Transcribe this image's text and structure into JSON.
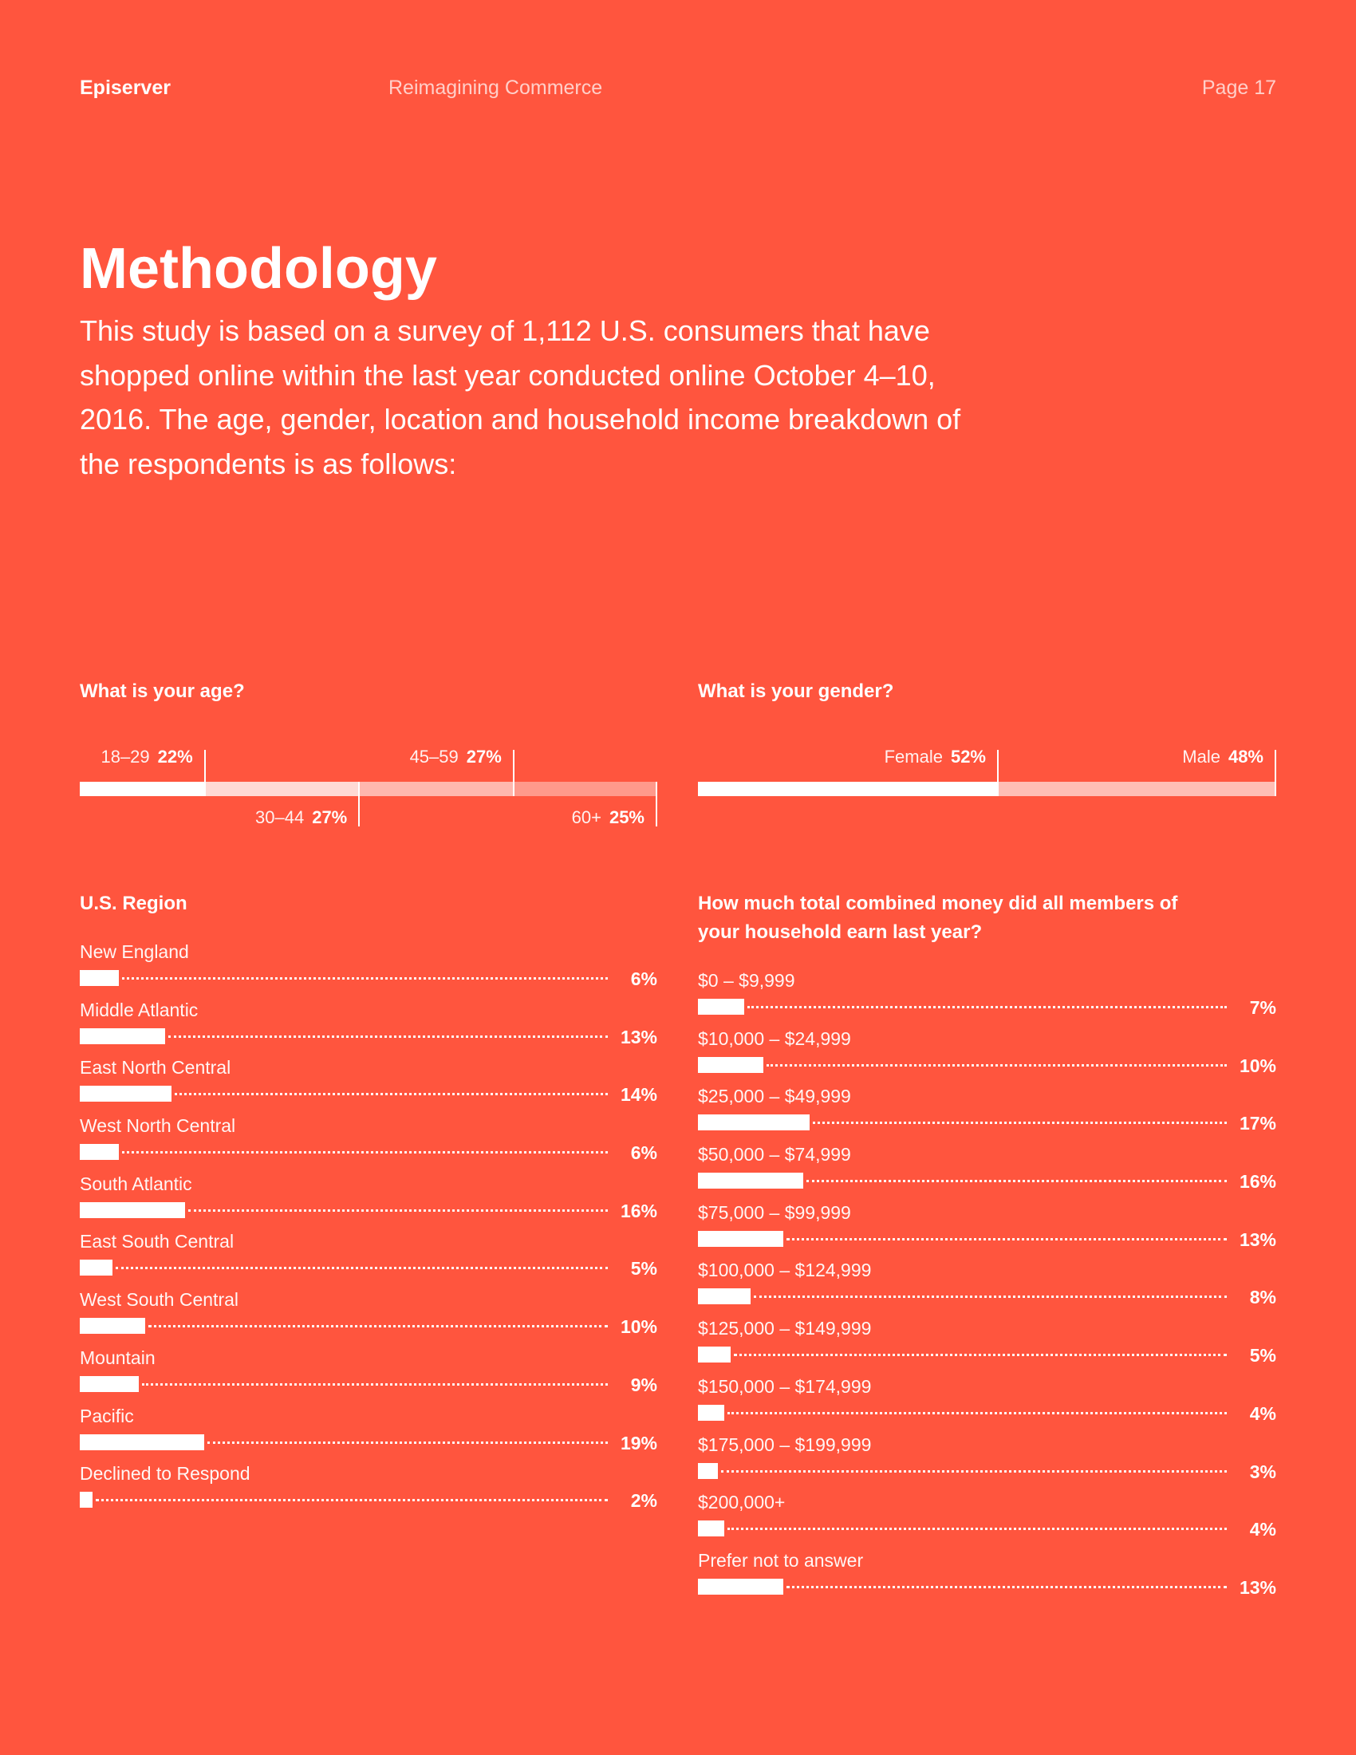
{
  "header": {
    "brand": "Episerver",
    "doc_title": "Reimagining Commerce",
    "page": "Page 17"
  },
  "title": "Methodology",
  "intro": "This study is based on a survey of 1,112 U.S. consumers that have shopped online within the last year conducted online October 4–10, 2016. The age, gender, location and household income breakdown of the respondents is as follows:",
  "colors": {
    "background": "#ff553e",
    "bar": "#ffffff"
  },
  "chart_data": [
    {
      "type": "bar",
      "title": "What is your age?",
      "stacked": true,
      "categories": [
        "18–29",
        "30–44",
        "45–59",
        "60+"
      ],
      "values": [
        22,
        27,
        27,
        25
      ],
      "labels": [
        "22%",
        "27%",
        "27%",
        "25%"
      ]
    },
    {
      "type": "bar",
      "title": "What is your gender?",
      "stacked": true,
      "categories": [
        "Female",
        "Male"
      ],
      "values": [
        52,
        48
      ],
      "labels": [
        "52%",
        "48%"
      ]
    },
    {
      "type": "bar",
      "title": "U.S. Region",
      "categories": [
        "New England",
        "Middle Atlantic",
        "East North Central",
        "West North Central",
        "South Atlantic",
        "East South Central",
        "West South Central",
        "Mountain",
        "Pacific",
        "Declined to Respond"
      ],
      "values": [
        6,
        13,
        14,
        6,
        16,
        5,
        10,
        9,
        19,
        2
      ],
      "labels": [
        "6%",
        "13%",
        "14%",
        "6%",
        "16%",
        "5%",
        "10%",
        "9%",
        "19%",
        "2%"
      ]
    },
    {
      "type": "bar",
      "title": "How much total combined money did all members of your household earn last year?",
      "categories": [
        "$0 – $9,999",
        "$10,000 – $24,999",
        "$25,000 – $49,999",
        "$50,000 – $74,999",
        "$75,000 – $99,999",
        "$100,000 – $124,999",
        "$125,000 – $149,999",
        "$150,000 – $174,999",
        "$175,000 – $199,999",
        "$200,000+",
        "Prefer not to answer"
      ],
      "values": [
        7,
        10,
        17,
        16,
        13,
        8,
        5,
        4,
        3,
        4,
        13
      ],
      "labels": [
        "7%",
        "10%",
        "17%",
        "16%",
        "13%",
        "8%",
        "5%",
        "4%",
        "3%",
        "4%",
        "13%"
      ]
    }
  ]
}
